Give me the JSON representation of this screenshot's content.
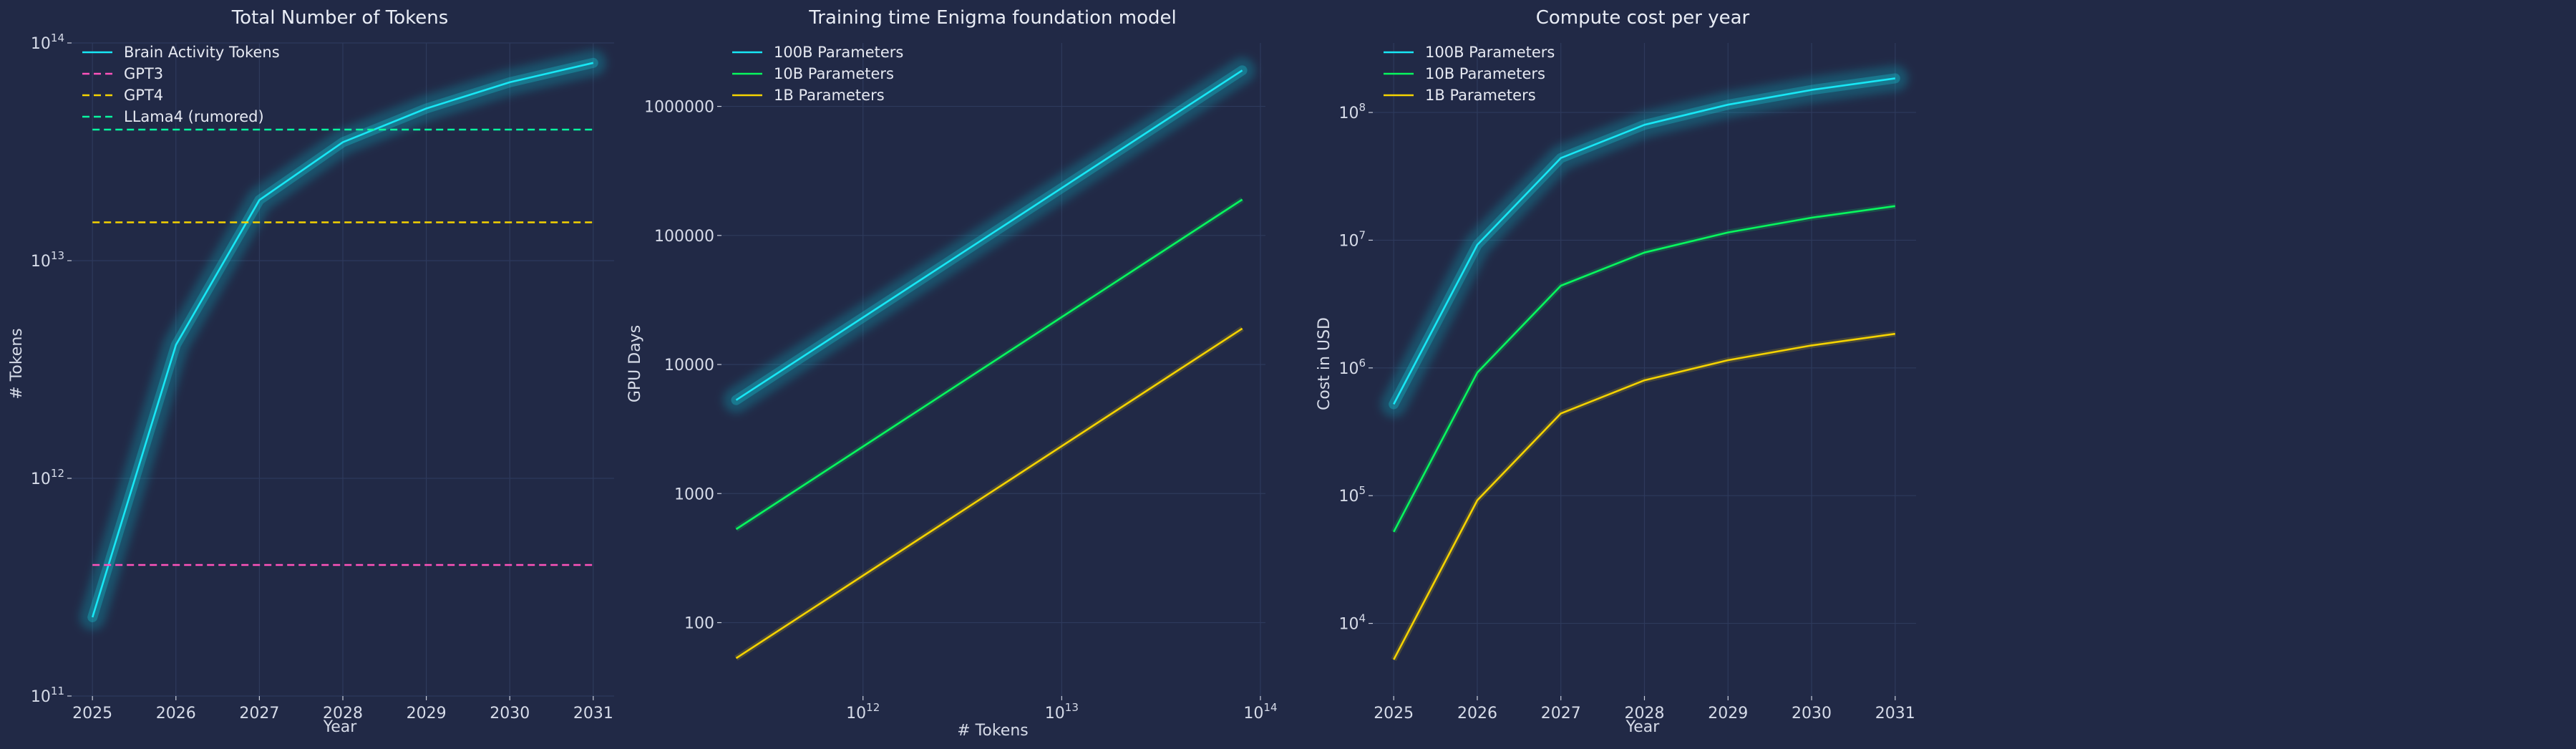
{
  "chart_data": [
    {
      "type": "line",
      "title": "Total Number of Tokens",
      "xlabel": "Year",
      "ylabel": "# Tokens",
      "x_scale": "linear",
      "y_scale": "log",
      "xlim": [
        2024.75,
        2031.25
      ],
      "ylim": [
        100000000000.0,
        100000000000000.0
      ],
      "x_ticks": [
        2025,
        2026,
        2027,
        2028,
        2029,
        2030,
        2031
      ],
      "x_tick_labels": [
        "2025",
        "2026",
        "2027",
        "2028",
        "2029",
        "2030",
        "2031"
      ],
      "y_ticks": [
        100000000000.0,
        1000000000000.0,
        10000000000000.0,
        100000000000000.0
      ],
      "y_tick_labels": [
        {
          "base": "10",
          "exp": "11"
        },
        {
          "base": "10",
          "exp": "12"
        },
        {
          "base": "10",
          "exp": "13"
        },
        {
          "base": "10",
          "exp": "14"
        }
      ],
      "grid": true,
      "legend_position": "upper-left",
      "series": [
        {
          "name": "Brain Activity Tokens",
          "color": "#18e7f5",
          "style": "solid",
          "glow": true,
          "x": [
            2025,
            2026,
            2027,
            2028,
            2029,
            2030,
            2031
          ],
          "y": [
            230000000000.0,
            4100000000000.0,
            19000000000000.0,
            35000000000000.0,
            50000000000000.0,
            66000000000000.0,
            81000000000000.0
          ]
        },
        {
          "name": "GPT3",
          "color": "#fe53bb",
          "style": "dashed",
          "x": [
            2025,
            2031
          ],
          "y": [
            400000000000.0,
            400000000000.0
          ]
        },
        {
          "name": "GPT4",
          "color": "#f5d300",
          "style": "dashed",
          "x": [
            2025,
            2031
          ],
          "y": [
            15000000000000.0,
            15000000000000.0
          ]
        },
        {
          "name": "LLama4 (rumored)",
          "color": "#08f7a0",
          "style": "dashed",
          "x": [
            2025,
            2031
          ],
          "y": [
            40000000000000.0,
            40000000000000.0
          ]
        }
      ]
    },
    {
      "type": "line",
      "title": "Training time Enigma foundation model",
      "xlabel": "# Tokens",
      "ylabel": "GPU Days",
      "x_scale": "log",
      "y_scale": "log",
      "xlim": [
        194000000000.0,
        106000000000000.0
      ],
      "ylim": [
        27,
        3100000.0
      ],
      "x_ticks": [
        1000000000000.0,
        10000000000000.0,
        100000000000000.0
      ],
      "x_tick_labels": [
        {
          "base": "10",
          "exp": "12"
        },
        {
          "base": "10",
          "exp": "13"
        },
        {
          "base": "10",
          "exp": "14"
        }
      ],
      "y_ticks": [
        100,
        1000,
        10000,
        100000,
        1000000
      ],
      "y_tick_labels": [
        "100",
        "1000",
        "10000",
        "100000",
        "1000000"
      ],
      "grid": true,
      "legend_position": "upper-left",
      "series": [
        {
          "name": "100B Parameters",
          "color": "#18e7f5",
          "style": "solid",
          "glow": true,
          "x": [
            230000000000.0,
            81000000000000.0
          ],
          "y": [
            5300,
            1900000
          ]
        },
        {
          "name": "10B Parameters",
          "color": "#08f75e",
          "style": "solid",
          "x": [
            230000000000.0,
            81000000000000.0
          ],
          "y": [
            530,
            190000
          ]
        },
        {
          "name": "1B Parameters",
          "color": "#f5d300",
          "style": "solid",
          "x": [
            230000000000.0,
            81000000000000.0
          ],
          "y": [
            53,
            19000
          ]
        }
      ]
    },
    {
      "type": "line",
      "title": "Compute cost per year",
      "xlabel": "Year",
      "ylabel": "Cost in USD",
      "x_scale": "linear",
      "y_scale": "log",
      "xlim": [
        2024.75,
        2031.25
      ],
      "ylim": [
        2700,
        350000000.0
      ],
      "x_ticks": [
        2025,
        2026,
        2027,
        2028,
        2029,
        2030,
        2031
      ],
      "x_tick_labels": [
        "2025",
        "2026",
        "2027",
        "2028",
        "2029",
        "2030",
        "2031"
      ],
      "y_ticks": [
        10000.0,
        100000.0,
        1000000.0,
        10000000.0,
        100000000.0
      ],
      "y_tick_labels": [
        {
          "base": "10",
          "exp": "4"
        },
        {
          "base": "10",
          "exp": "5"
        },
        {
          "base": "10",
          "exp": "6"
        },
        {
          "base": "10",
          "exp": "7"
        },
        {
          "base": "10",
          "exp": "8"
        }
      ],
      "grid": true,
      "legend_position": "upper-left",
      "series": [
        {
          "name": "100B Parameters",
          "color": "#18e7f5",
          "style": "solid",
          "glow": true,
          "x": [
            2025,
            2026,
            2027,
            2028,
            2029,
            2030,
            2031
          ],
          "y": [
            520000,
            9200000,
            44000000,
            80000000,
            115000000,
            150000000,
            185000000
          ]
        },
        {
          "name": "10B Parameters",
          "color": "#08f75e",
          "style": "solid",
          "x": [
            2025,
            2026,
            2027,
            2028,
            2029,
            2030,
            2031
          ],
          "y": [
            52000,
            920000,
            4400000,
            8000000,
            11500000,
            15000000,
            18500000
          ]
        },
        {
          "name": "1B Parameters",
          "color": "#f5d300",
          "style": "solid",
          "x": [
            2025,
            2026,
            2027,
            2028,
            2029,
            2030,
            2031
          ],
          "y": [
            5200,
            92000,
            440000,
            800000,
            1150000,
            1500000,
            1850000
          ]
        }
      ]
    }
  ]
}
